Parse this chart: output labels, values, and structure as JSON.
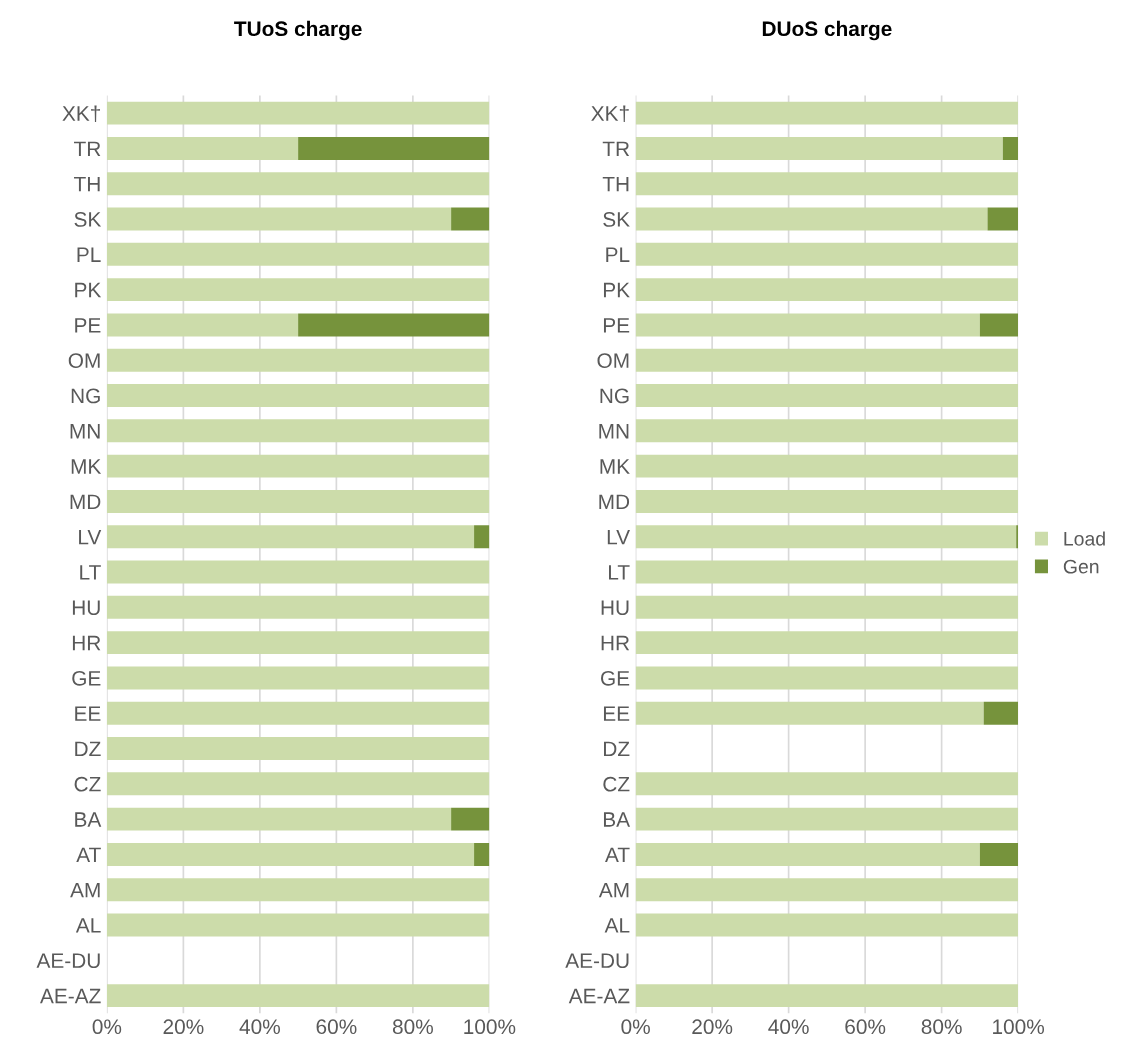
{
  "chart_data": [
    {
      "type": "bar",
      "title": "TUoS charge",
      "orientation": "horizontal",
      "stacked": true,
      "categories": [
        "XK†",
        "TR",
        "TH",
        "SK",
        "PL",
        "PK",
        "PE",
        "OM",
        "NG",
        "MN",
        "MK",
        "MD",
        "LV",
        "LT",
        "HU",
        "HR",
        "GE",
        "EE",
        "DZ",
        "CZ",
        "BA",
        "AT",
        "AM",
        "AL",
        "AE-DU",
        "AE-AZ"
      ],
      "series": [
        {
          "color": "#ccdcaa",
          "values": [
            100,
            50,
            100,
            90,
            100,
            100,
            50,
            100,
            100,
            100,
            100,
            100,
            96,
            100,
            100,
            100,
            100,
            100,
            100,
            100,
            90,
            96,
            100,
            100,
            null,
            100
          ]
        },
        {
          "color": "#76933c",
          "values": [
            0,
            50,
            0,
            10,
            0,
            0,
            50,
            0,
            0,
            0,
            0,
            0,
            4,
            0,
            0,
            0,
            0,
            0,
            0,
            0,
            10,
            4,
            0,
            0,
            null,
            0
          ]
        }
      ],
      "xlim": [
        0,
        100
      ],
      "xticks": [
        {
          "value": 0,
          "label": "0%"
        },
        {
          "value": 20,
          "label": "20%"
        },
        {
          "value": 40,
          "label": "40%"
        },
        {
          "value": 60,
          "label": "60%"
        },
        {
          "value": 80,
          "label": "80%"
        },
        {
          "value": 100,
          "label": "100%"
        }
      ],
      "grid": "x",
      "legend": false
    },
    {
      "type": "bar",
      "title": "DUoS charge",
      "orientation": "horizontal",
      "stacked": true,
      "categories": [
        "XK†",
        "TR",
        "TH",
        "SK",
        "PL",
        "PK",
        "PE",
        "OM",
        "NG",
        "MN",
        "MK",
        "MD",
        "LV",
        "LT",
        "HU",
        "HR",
        "GE",
        "EE",
        "DZ",
        "CZ",
        "BA",
        "AT",
        "AM",
        "AL",
        "AE-DU",
        "AE-AZ"
      ],
      "series": [
        {
          "name": "Load",
          "color": "#ccdcaa",
          "values": [
            100,
            96,
            100,
            92,
            100,
            100,
            90,
            100,
            100,
            100,
            100,
            100,
            99.5,
            100,
            100,
            100,
            100,
            91,
            null,
            100,
            100,
            90,
            100,
            100,
            null,
            100
          ]
        },
        {
          "name": "Gen",
          "color": "#76933c",
          "values": [
            0,
            4,
            0,
            8,
            0,
            0,
            10,
            0,
            0,
            0,
            0,
            0,
            0.5,
            0,
            0,
            0,
            0,
            9,
            null,
            0,
            0,
            10,
            0,
            0,
            null,
            0
          ]
        }
      ],
      "xlim": [
        0,
        100
      ],
      "xticks": [
        {
          "value": 0,
          "label": "0%"
        },
        {
          "value": 20,
          "label": "20%"
        },
        {
          "value": 40,
          "label": "40%"
        },
        {
          "value": 60,
          "label": "60%"
        },
        {
          "value": 80,
          "label": "80%"
        },
        {
          "value": 100,
          "label": "100%"
        }
      ],
      "grid": "x",
      "legend": "right"
    }
  ]
}
